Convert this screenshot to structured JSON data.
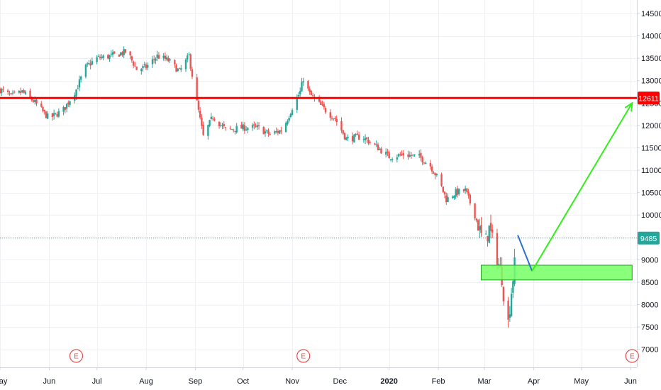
{
  "chart_data": {
    "type": "candlestick",
    "y_axis": {
      "range": [
        6600,
        14800
      ],
      "ticks": [
        7000,
        7500,
        8000,
        8500,
        9000,
        9500,
        10000,
        10500,
        11000,
        11500,
        12000,
        12500,
        13000,
        13500,
        14000,
        14500
      ],
      "tick_labels": [
        "7000",
        "7500",
        "8000",
        "8500",
        "9000",
        "9500",
        "10000",
        "10500",
        "11000",
        "11500",
        "12000",
        "12500",
        "13000",
        "13500",
        "14000",
        "14500"
      ]
    },
    "x_axis": {
      "range": [
        "2019-05-01",
        "2020-06-05"
      ],
      "ticks": [
        {
          "date": "2019-05-01",
          "label": "May",
          "bold": false
        },
        {
          "date": "2019-06-01",
          "label": "Jun",
          "bold": false
        },
        {
          "date": "2019-07-01",
          "label": "Jul",
          "bold": false
        },
        {
          "date": "2019-08-01",
          "label": "Aug",
          "bold": false
        },
        {
          "date": "2019-09-01",
          "label": "Sep",
          "bold": false
        },
        {
          "date": "2019-10-01",
          "label": "Oct",
          "bold": false
        },
        {
          "date": "2019-11-01",
          "label": "Nov",
          "bold": false
        },
        {
          "date": "2019-12-01",
          "label": "Dec",
          "bold": false
        },
        {
          "date": "2020-01-01",
          "label": "2020",
          "bold": true
        },
        {
          "date": "2020-02-01",
          "label": "Feb",
          "bold": false
        },
        {
          "date": "2020-03-01",
          "label": "Mar",
          "bold": false
        },
        {
          "date": "2020-04-01",
          "label": "Apr",
          "bold": false
        },
        {
          "date": "2020-05-01",
          "label": "May",
          "bold": false
        },
        {
          "date": "2020-06-01",
          "label": "Jun",
          "bold": false
        }
      ]
    },
    "candle_path": [
      [
        "2019-05-01",
        12800
      ],
      [
        "2019-05-08",
        12650
      ],
      [
        "2019-05-15",
        12750
      ],
      [
        "2019-05-22",
        12550
      ],
      [
        "2019-06-01",
        12150
      ],
      [
        "2019-06-10",
        12350
      ],
      [
        "2019-06-18",
        12800
      ],
      [
        "2019-06-24",
        13300
      ],
      [
        "2019-07-01",
        13500
      ],
      [
        "2019-07-10",
        13550
      ],
      [
        "2019-07-20",
        13650
      ],
      [
        "2019-07-26",
        13250
      ],
      [
        "2019-08-01",
        13300
      ],
      [
        "2019-08-08",
        13550
      ],
      [
        "2019-08-15",
        13450
      ],
      [
        "2019-08-22",
        13200
      ],
      [
        "2019-08-28",
        13550
      ],
      [
        "2019-09-01",
        12700
      ],
      [
        "2019-09-06",
        11750
      ],
      [
        "2019-09-12",
        12200
      ],
      [
        "2019-09-20",
        11900
      ],
      [
        "2019-10-01",
        11950
      ],
      [
        "2019-10-10",
        11950
      ],
      [
        "2019-10-18",
        11800
      ],
      [
        "2019-10-26",
        11900
      ],
      [
        "2019-11-01",
        12400
      ],
      [
        "2019-11-06",
        12750
      ],
      [
        "2019-11-08",
        13050
      ],
      [
        "2019-11-12",
        12700
      ],
      [
        "2019-11-20",
        12400
      ],
      [
        "2019-11-28",
        12150
      ],
      [
        "2019-12-05",
        11700
      ],
      [
        "2019-12-15",
        11750
      ],
      [
        "2019-12-25",
        11500
      ],
      [
        "2020-01-01",
        11300
      ],
      [
        "2020-01-10",
        11350
      ],
      [
        "2020-01-20",
        11300
      ],
      [
        "2020-01-27",
        11100
      ],
      [
        "2020-02-01",
        10800
      ],
      [
        "2020-02-06",
        10350
      ],
      [
        "2020-02-12",
        10500
      ],
      [
        "2020-02-18",
        10550
      ],
      [
        "2020-02-24",
        10000
      ],
      [
        "2020-03-01",
        9300
      ],
      [
        "2020-03-04",
        9700
      ],
      [
        "2020-03-08",
        9200
      ],
      [
        "2020-03-12",
        8600
      ],
      [
        "2020-03-14",
        7900
      ],
      [
        "2020-03-16",
        7600
      ],
      [
        "2020-03-18",
        8300
      ],
      [
        "2020-03-22",
        9500
      ]
    ],
    "earnings_markers": [
      {
        "date": "2019-06-18",
        "label": "E"
      },
      {
        "date": "2019-11-08",
        "label": "E"
      },
      {
        "date": "2020-06-02",
        "label": "E"
      }
    ],
    "horizontal_lines": [
      {
        "price": 12611,
        "label": "12611",
        "color": "#ff0000",
        "style": "solid"
      },
      {
        "price": 9485,
        "label": "9485",
        "color": "#26a69a",
        "style": "dotted"
      }
    ],
    "zone": {
      "price_low": 8550,
      "price_high": 8880,
      "date_start": "2020-02-28",
      "date_end": "2020-06-02",
      "color": "#76ff64"
    },
    "projection_blue": [
      [
        "2020-03-22",
        9550
      ],
      [
        "2020-03-31",
        8750
      ]
    ],
    "projection_green": [
      [
        "2020-03-31",
        8750
      ],
      [
        "2020-06-02",
        12500
      ]
    ],
    "colors": {
      "up": "#26a69a",
      "down": "#ef5350",
      "grid": "#eef0f4",
      "axis_line": "#d1d4dc",
      "blue_arrow": "#2e6fd4",
      "green_arrow": "#33ee1a",
      "earnings": "#e04b4b"
    }
  }
}
